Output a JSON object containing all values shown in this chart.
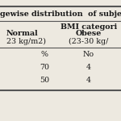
{
  "title": "gewise distribution  of subje",
  "header_bmi": "BMI categori",
  "col1_header": "Normal",
  "col1_sub": "23 kg/m2)",
  "col2_header": "Obese",
  "col2_sub": "(23-30 kg/",
  "col1_label": "%",
  "col2_label": "No",
  "rows": [
    [
      "70",
      "4"
    ],
    [
      "50",
      "4"
    ]
  ],
  "bg_color": "#ede9e0",
  "line_color": "#555555",
  "text_color": "#1a1a1a",
  "bold_color": "#111111"
}
